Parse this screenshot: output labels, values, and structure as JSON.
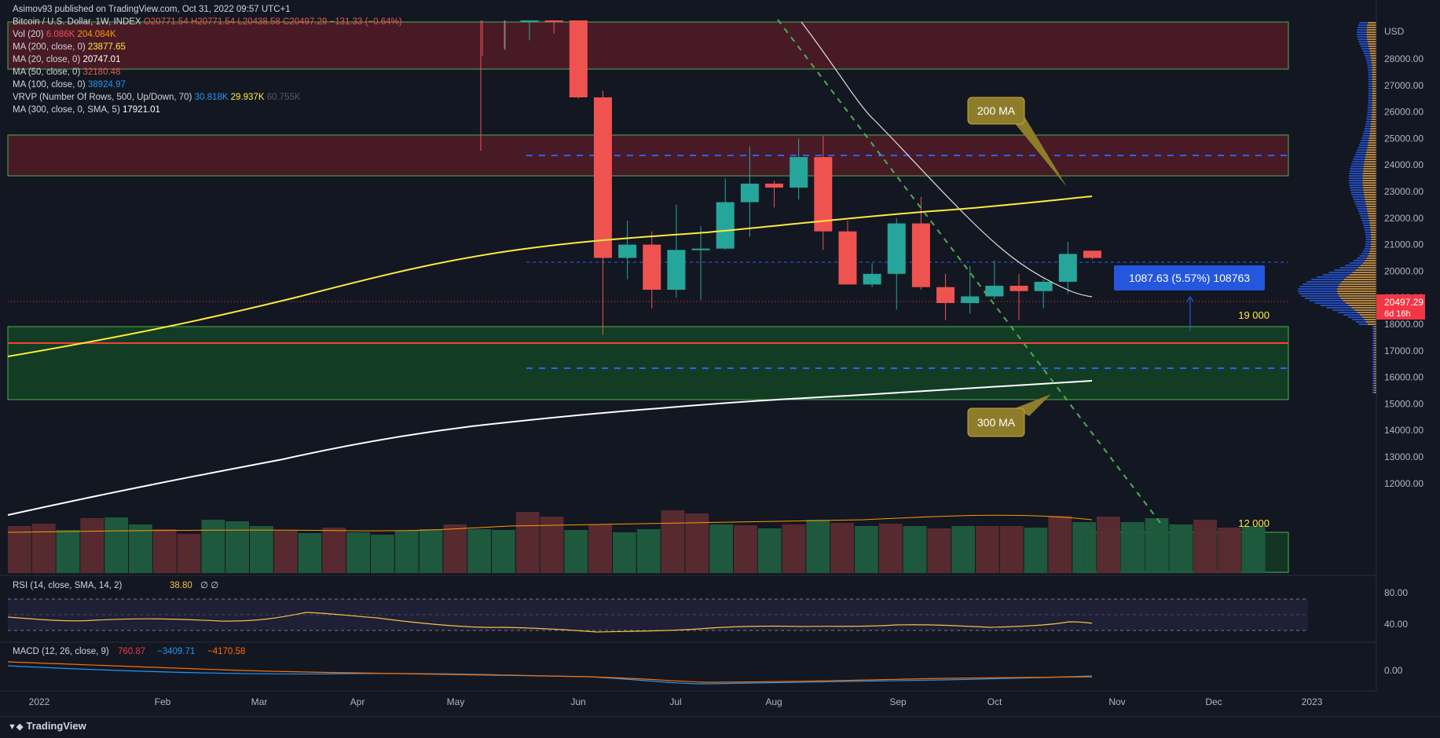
{
  "header": {
    "author": "Asimov93 published on TradingView.com, Oct 31, 2022 09:57 UTC+1"
  },
  "legend": {
    "symbol": {
      "label": "Bitcoin / U.S. Dollar, 1W, INDEX",
      "o": "O20771.54",
      "h": "H20771.54",
      "l": "L20438.58",
      "c": "C20497.29",
      "chg": "−131.33 (−0.64%)"
    },
    "vol": {
      "label": "Vol (20)",
      "v1": "6.086K",
      "v2": "204.084K"
    },
    "ma200": {
      "label": "MA (200, close, 0)",
      "value": "23877.65"
    },
    "ma20": {
      "label": "MA (20, close, 0)",
      "value": "20747.01"
    },
    "ma50": {
      "label": "MA (50, close, 0)",
      "value": "32180.48"
    },
    "ma100": {
      "label": "MA (100, close, 0)",
      "value": "38924.97"
    },
    "vrvp": {
      "label": "VRVP (Number Of Rows, 500, Up/Down, 70)",
      "v1": "30.818K",
      "v2": "29.937K",
      "v3": "60.755K"
    },
    "ma300": {
      "label": "MA (300, close, 0, SMA, 5)",
      "value": "17921.01"
    }
  },
  "colors": {
    "bg": "#131722",
    "up": "#26a69a",
    "down": "#ef5350",
    "ma200": "#ffeb3b",
    "ma300": "#ffffff",
    "ma20": "#e0e0e0",
    "trendline": "#4caf50",
    "support": "#f44336",
    "callout": "#8d7d2a",
    "badge": "#2962ff"
  },
  "annotations": {
    "ma200_callout": "200 MA",
    "ma300_callout": "300 MA",
    "level_19000": "19 000",
    "level_12000": "12 000",
    "measure": "1087.63 (5.57%) 108763",
    "price_badge": "20497.29",
    "price_badge_time": "6d 16h"
  },
  "rsi": {
    "label": "RSI (14, close, SMA, 14, 2)",
    "value": "38.80",
    "extra": "∅ ∅",
    "ticks": [
      "80.00",
      "40.00"
    ]
  },
  "macd": {
    "label": "MACD (12, 26, close, 9)",
    "v1": "760.87",
    "v2": "−3409.71",
    "v3": "−4170.58",
    "tick": "0.00"
  },
  "axis": {
    "currency": "USD",
    "price_ticks": [
      "28000.00",
      "27000.00",
      "26000.00",
      "25000.00",
      "24000.00",
      "23000.00",
      "22000.00",
      "21000.00",
      "20000.00",
      "19000.00",
      "18000.00",
      "17000.00",
      "16000.00",
      "15000.00",
      "14000.00",
      "13000.00",
      "12000.00"
    ],
    "time_ticks": [
      "2022",
      "Feb",
      "Mar",
      "Apr",
      "May",
      "Jun",
      "Jul",
      "Aug",
      "Sep",
      "Oct",
      "Nov",
      "Dec",
      "2023"
    ]
  },
  "footer": {
    "brand": "TradingView"
  },
  "chart_data": {
    "type": "candlestick",
    "timeframe": "1W",
    "ylim": [
      11800,
      29200
    ],
    "candles": [
      {
        "o": 29450,
        "h": 29900,
        "l": 28700,
        "c": 29700
      },
      {
        "o": 29700,
        "h": 29900,
        "l": 28950,
        "c": 29550
      },
      {
        "o": 29700,
        "h": 29850,
        "l": 26500,
        "c": 26550
      },
      {
        "o": 26550,
        "h": 26800,
        "l": 17600,
        "c": 20500
      },
      {
        "o": 20500,
        "h": 21900,
        "l": 19700,
        "c": 21000
      },
      {
        "o": 21000,
        "h": 21500,
        "l": 18600,
        "c": 19300
      },
      {
        "o": 19300,
        "h": 22500,
        "l": 19000,
        "c": 20800
      },
      {
        "o": 20800,
        "h": 21700,
        "l": 18900,
        "c": 20850
      },
      {
        "o": 20850,
        "h": 23500,
        "l": 20800,
        "c": 22600
      },
      {
        "o": 22600,
        "h": 24700,
        "l": 21300,
        "c": 23300
      },
      {
        "o": 23300,
        "h": 23400,
        "l": 22400,
        "c": 23150
      },
      {
        "o": 23150,
        "h": 25000,
        "l": 22700,
        "c": 24300
      },
      {
        "o": 24300,
        "h": 25100,
        "l": 20800,
        "c": 21500
      },
      {
        "o": 21500,
        "h": 21900,
        "l": 19500,
        "c": 19500
      },
      {
        "o": 19500,
        "h": 20300,
        "l": 19400,
        "c": 19900
      },
      {
        "o": 19900,
        "h": 22000,
        "l": 18550,
        "c": 21800
      },
      {
        "o": 21800,
        "h": 22800,
        "l": 19300,
        "c": 19400
      },
      {
        "o": 19400,
        "h": 19900,
        "l": 18150,
        "c": 18800
      },
      {
        "o": 18800,
        "h": 20200,
        "l": 18400,
        "c": 19050
      },
      {
        "o": 19050,
        "h": 20400,
        "l": 18950,
        "c": 19450
      },
      {
        "o": 19450,
        "h": 19900,
        "l": 18150,
        "c": 19250
      },
      {
        "o": 19250,
        "h": 19700,
        "l": 18600,
        "c": 19600
      },
      {
        "o": 19600,
        "h": 21100,
        "l": 19150,
        "c": 20650
      },
      {
        "o": 20771.54,
        "h": 20771.54,
        "l": 20438.58,
        "c": 20497.29
      }
    ],
    "ma200": {
      "start": 18800,
      "end": 23877.65
    },
    "ma300": {
      "start": 13650,
      "end": 17921.01
    },
    "levels": {
      "support_19000": 19000,
      "level_12000": 12000,
      "red_line": 19100
    }
  }
}
